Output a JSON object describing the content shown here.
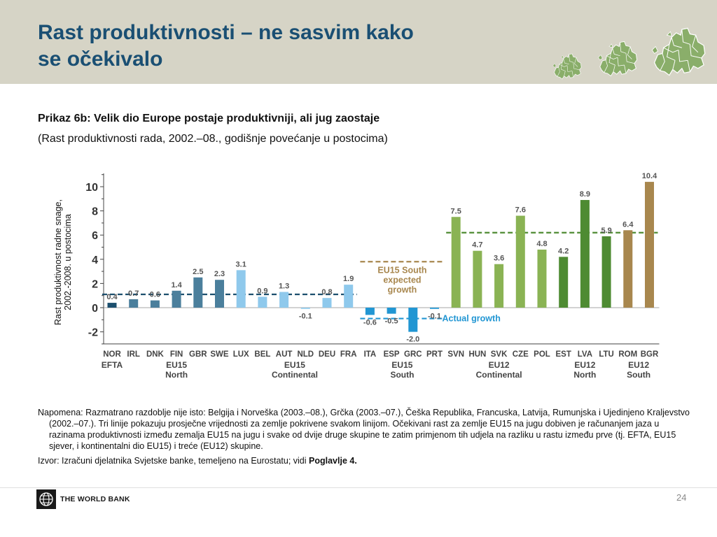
{
  "slide": {
    "title_line1": "Rast produktivnosti – ne sasvim kako",
    "title_line2": "se očekivalo",
    "page_number": "24"
  },
  "figure": {
    "title": "Prikaz 6b: Velik dio Europe postaje produktivniji, ali jug zaostaje",
    "subtitle": "(Rast produktivnosti rada, 2002.–08., godišnje povećanje u postocima)"
  },
  "chart_data": {
    "type": "bar",
    "ylabel_line1": "Rast produktivnost radne snage,",
    "ylabel_line2": "2002.-2008. u postocima",
    "ylim": [
      -3,
      11
    ],
    "yticks": [
      -2,
      0,
      2,
      4,
      6,
      8,
      10
    ],
    "categories": [
      "NOR",
      "IRL",
      "DNK",
      "FIN",
      "GBR",
      "SWE",
      "LUX",
      "BEL",
      "AUT",
      "NLD",
      "DEU",
      "FRA",
      "ITA",
      "ESP",
      "GRC",
      "PRT",
      "SVN",
      "HUN",
      "SVK",
      "CZE",
      "POL",
      "EST",
      "LVA",
      "LTU",
      "ROM",
      "BGR"
    ],
    "values": [
      0.4,
      0.7,
      0.6,
      1.4,
      2.5,
      2.3,
      3.1,
      0.9,
      1.3,
      -0.1,
      0.8,
      1.9,
      -0.6,
      -0.5,
      -2.0,
      -0.1,
      7.5,
      4.7,
      3.6,
      7.6,
      4.8,
      4.2,
      8.9,
      5.9,
      6.4,
      10.4
    ],
    "value_labels": [
      "0.4",
      "0.7",
      "0.6",
      "1.4",
      "2.5",
      "2.3",
      "3.1",
      "0.9",
      "1.3",
      "-0.1",
      "0.8",
      "1.9",
      "-0.6",
      "-0.5",
      "-2.0",
      "-0.1",
      "7.5",
      "4.7",
      "3.6",
      "7.6",
      "4.8",
      "4.2",
      "8.9",
      "5.9",
      "6.4",
      "10.4"
    ],
    "groups": [
      {
        "line1": "EFTA",
        "line2": "",
        "start": 0,
        "end": 0,
        "color": "#1c4f6e"
      },
      {
        "line1": "EU15",
        "line2": "North",
        "start": 1,
        "end": 5,
        "color": "#4b7f9c"
      },
      {
        "line1": "EU15",
        "line2": "Continental",
        "start": 6,
        "end": 11,
        "color": "#8fc9ec"
      },
      {
        "line1": "EU15",
        "line2": "South",
        "start": 12,
        "end": 15,
        "color": "#2196d3"
      },
      {
        "line1": "EU12",
        "line2": "Continental",
        "start": 16,
        "end": 20,
        "color": "#8ab354"
      },
      {
        "line1": "EU12",
        "line2": "North",
        "start": 21,
        "end": 23,
        "color": "#4e8b32"
      },
      {
        "line1": "EU12",
        "line2": "South",
        "start": 24,
        "end": 25,
        "color": "#a8874e"
      }
    ],
    "reference_lines": [
      {
        "value": 1.1,
        "from": 0,
        "to": 11,
        "color": "#1c4f6e"
      },
      {
        "value": 3.8,
        "from": 12,
        "to": 15,
        "color": "#a8874e"
      },
      {
        "value": -0.9,
        "from": 12,
        "to": 15,
        "color": "#2196d3"
      },
      {
        "value": 6.2,
        "from": 16,
        "to": 25,
        "color": "#4e8b32"
      }
    ],
    "annotations": {
      "expected": [
        "EU15 South",
        "expected",
        "growth"
      ],
      "expected_color": "#a8874e",
      "actual": "Actual growth",
      "actual_color": "#2196d3"
    },
    "grid": false
  },
  "notes": {
    "note": "Napomena: Razmatrano razdoblje nije isto: Belgija i Norveška (2003.–08.), Grčka (2003.–07.), Češka Republika, Francuska, Latvija, Rumunjska i Ujedinjeno Kraljevstvo (2002.–07.). Tri linije pokazuju prosječne vrijednosti za zemlje pokrivene svakom linijom. Očekivani rast za zemlje EU15 na jugu dobiven je računanjem jaza u razinama produktivnosti između zemalja EU15 na jugu i svake od dvije druge skupine te zatim primjenom tih udjela na razliku u rastu između prve (tj. EFTA, EU15 sjever, i kontinentalni dio EU15) i treće (EU12) skupine.",
    "source_prefix": "Izvor: Izračuni djelatnika Svjetske banke, temeljeno na Eurostatu; vidi ",
    "source_bold": "Poglavlje 4."
  },
  "footer": {
    "logo_text": "THE WORLD BANK"
  },
  "colors": {
    "header_bg": "#d6d4c6",
    "title": "#1a4f73",
    "map_green": "#8aae6a"
  },
  "icons": [
    "europe-map-icon",
    "world-bank-globe-icon"
  ]
}
